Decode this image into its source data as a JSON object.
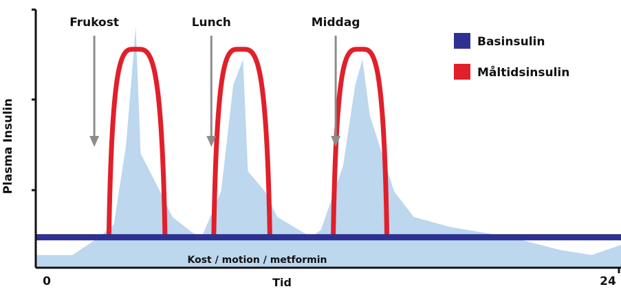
{
  "chart_data": {
    "type": "area",
    "title": "",
    "xlabel": "Tid",
    "ylabel": "Plasma Insulin",
    "x_tick_labels": [
      "0",
      "24"
    ],
    "xlim": [
      0,
      24
    ],
    "ylim": [
      0,
      1
    ],
    "grid": false,
    "legend_position": "top-right",
    "meals": [
      {
        "label": "Frukost",
        "x": 2.4
      },
      {
        "label": "Lunch",
        "x": 7.2
      },
      {
        "label": "Middag",
        "x": 12.3
      }
    ],
    "annotation": "Kost / motion / metformin",
    "series": [
      {
        "name": "Basinsulin",
        "type": "line",
        "color": "#2e3192",
        "x": [
          0,
          24
        ],
        "y": [
          0.12,
          0.12
        ]
      },
      {
        "name": "Måltidsinsulin",
        "type": "arc",
        "color": "#e0202a",
        "arcs": [
          {
            "x_start": 3.0,
            "x_peak": 4.1,
            "x_end": 5.3,
            "y_peak": 0.86
          },
          {
            "x_start": 7.3,
            "x_peak": 8.4,
            "x_end": 9.6,
            "y_peak": 0.86
          },
          {
            "x_start": 12.2,
            "x_peak": 13.3,
            "x_end": 14.4,
            "y_peak": 0.86
          }
        ]
      },
      {
        "type": "area",
        "color": "#bcd7ee",
        "x": [
          0,
          1.0,
          1.5,
          2.6,
          3.2,
          3.7,
          4.1,
          4.3,
          5.1,
          5.6,
          6.4,
          6.8,
          7.6,
          8.1,
          8.5,
          8.7,
          9.4,
          9.9,
          11.3,
          11.7,
          12.6,
          13.1,
          13.4,
          13.7,
          14.7,
          15.5,
          17.0,
          19.5,
          21.5,
          22.8,
          24
        ],
        "y": [
          0.05,
          0.05,
          0.05,
          0.12,
          0.17,
          0.48,
          0.95,
          0.45,
          0.3,
          0.2,
          0.14,
          0.12,
          0.3,
          0.72,
          0.82,
          0.38,
          0.3,
          0.2,
          0.12,
          0.15,
          0.4,
          0.72,
          0.82,
          0.6,
          0.3,
          0.2,
          0.16,
          0.12,
          0.07,
          0.05,
          0.09
        ]
      }
    ]
  }
}
